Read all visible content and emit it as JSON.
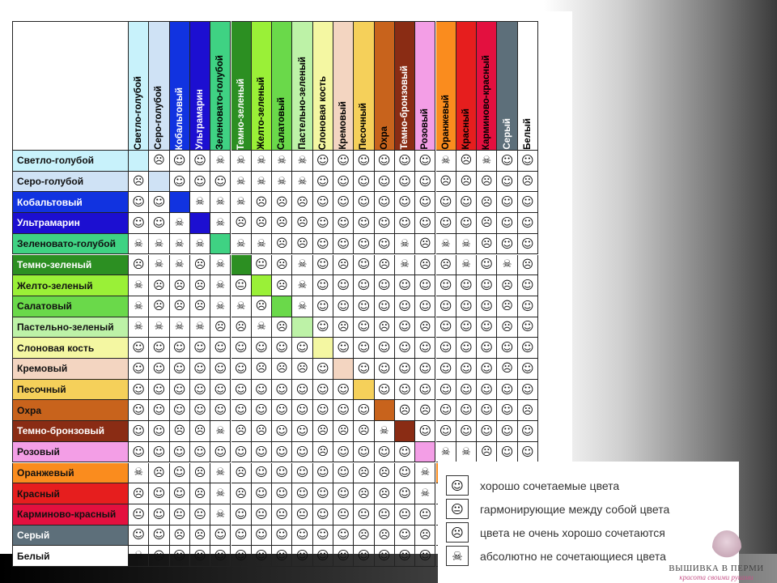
{
  "colors": [
    {
      "name": "Светло-голубой",
      "hex": "#c8f2fb",
      "light_text": false
    },
    {
      "name": "Серо-голубой",
      "hex": "#cfe2f5",
      "light_text": false
    },
    {
      "name": "Кобальтовый",
      "hex": "#1133e0",
      "light_text": true
    },
    {
      "name": "Ультрамарин",
      "hex": "#1c0fd1",
      "light_text": true
    },
    {
      "name": "Зеленовато-голубой",
      "hex": "#3fd283",
      "light_text": false
    },
    {
      "name": "Темно-зеленый",
      "hex": "#2c8f22",
      "light_text": true
    },
    {
      "name": "Желто-зеленый",
      "hex": "#9af037",
      "light_text": false
    },
    {
      "name": "Салатовый",
      "hex": "#6ad94a",
      "light_text": false
    },
    {
      "name": "Пастельно-зеленый",
      "hex": "#bdf2a7",
      "light_text": false
    },
    {
      "name": "Слоновая кость",
      "hex": "#f4f7a2",
      "light_text": false
    },
    {
      "name": "Кремовый",
      "hex": "#f3d5c1",
      "light_text": false
    },
    {
      "name": "Песочный",
      "hex": "#f5d05a",
      "light_text": false
    },
    {
      "name": "Охра",
      "hex": "#c8631c",
      "light_text": false
    },
    {
      "name": "Темно-бронзовый",
      "hex": "#8a2c14",
      "light_text": true
    },
    {
      "name": "Розовый",
      "hex": "#f39ee6",
      "light_text": false
    },
    {
      "name": "Оранжевый",
      "hex": "#fa8c1e",
      "light_text": false
    },
    {
      "name": "Красный",
      "hex": "#e61e1e",
      "light_text": false
    },
    {
      "name": "Карминово-красный",
      "hex": "#e3103f",
      "light_text": false
    },
    {
      "name": "Серый",
      "hex": "#5d6f7a",
      "light_text": true
    },
    {
      "name": "Белый",
      "hex": "#ffffff",
      "light_text": false
    }
  ],
  "symbols": {
    "g": "☺",
    "n": "😐",
    "b": "☹",
    "x": "☠"
  },
  "matrix": [
    "-bggxxxxxggggggxbxgg",
    "b-gggxxxxggggggbbbgb",
    "gg-xxxbbbggggggggbgg",
    "ggx-xbbbbggggggggbgg",
    "xxxx-xxbbggggxbxxbgg",
    "bxxbx-nbxgbgbxbbxgxb",
    "xbbbxn-bxgggggggggbg",
    "xbbbxxb-xgggggggggbg",
    "xxxxbbxb-gbgbgbgggbg",
    "ggggggggg-gggggggggg",
    "ggggggbbbg-gggggggbg",
    "ggggggggggg-gggggggg",
    "gggggggggggg-bbggggb",
    "ggbbxbbggbbbx-gggggg",
    "gggggggggbgggg-xxbgg",
    "xbgbxbgggggbbgx-bbxg",
    "bggbxbgggggbbgxb-bgg",
    "ngnnxgnnngnnnnnnn-gb",
    "ggbbgggggggbbgbbbg-g",
    "xbggggggggggggggggg-"
  ],
  "legend": [
    {
      "icon": "smile-icon",
      "symbol": "☺",
      "text": "хорошо сочетаемые цвета"
    },
    {
      "icon": "neutral-face-icon",
      "symbol": "😐",
      "text": "гармонирующие между собой цвета"
    },
    {
      "icon": "frown-icon",
      "symbol": "☹",
      "text": "цвета не очень хорошо сочетаются"
    },
    {
      "icon": "skull-icon",
      "symbol": "☠",
      "text": "абсолютно не сочетающиеся цвета"
    }
  ],
  "watermark": {
    "title": "ВЫШИВКА В ПЕРМИ",
    "subtitle": "красота своими руками"
  }
}
